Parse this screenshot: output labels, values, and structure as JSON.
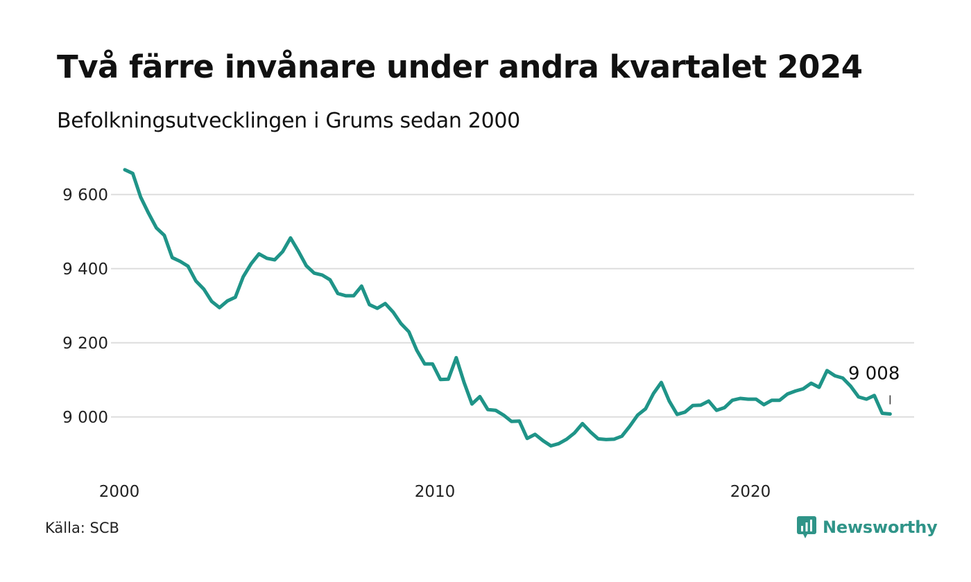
{
  "header": {
    "title": "Två färre invånare under andra kvartalet 2024",
    "subtitle": "Befolkningsutvecklingen i Grums sedan 2000"
  },
  "footer": {
    "source": "Källa: SCB",
    "brand": "Newsworthy",
    "brand_icon": "newsworthy-logo-icon"
  },
  "colors": {
    "line": "#1f9488",
    "grid": "#dddddd",
    "brand": "#2f9488"
  },
  "chart_data": {
    "type": "line",
    "title": "Två färre invånare under andra kvartalet 2024",
    "subtitle": "Befolkningsutvecklingen i Grums sedan 2000",
    "xlabel": "",
    "ylabel": "",
    "x_ticks": [
      2000,
      2010,
      2020
    ],
    "x_tick_labels": [
      "2000",
      "2010",
      "2020"
    ],
    "y_ticks": [
      9000,
      9200,
      9400,
      9600
    ],
    "y_tick_labels": [
      "9 000",
      "9 200",
      "9 400",
      "9 600"
    ],
    "xlim": [
      2000,
      2024.5
    ],
    "ylim": [
      8880,
      9680
    ],
    "grid": true,
    "series": [
      {
        "x": [
          2000.0,
          2000.25,
          2000.5,
          2000.75,
          2001.0,
          2001.25,
          2001.5,
          2001.75,
          2002.0,
          2002.25,
          2002.5,
          2002.75,
          2003.0,
          2003.25,
          2003.5,
          2003.75,
          2004.0,
          2004.25,
          2004.5,
          2004.75,
          2005.0,
          2005.25,
          2005.5,
          2005.75,
          2006.0,
          2006.25,
          2006.5,
          2006.75,
          2007.0,
          2007.25,
          2007.5,
          2007.75,
          2008.0,
          2008.25,
          2008.5,
          2008.75,
          2009.0,
          2009.25,
          2009.5,
          2009.75,
          2010.0,
          2010.25,
          2010.5,
          2010.75,
          2011.0,
          2011.25,
          2011.5,
          2011.75,
          2012.0,
          2012.25,
          2012.5,
          2012.75,
          2013.0,
          2013.25,
          2013.5,
          2013.75,
          2014.0,
          2014.25,
          2014.5,
          2014.75,
          2015.0,
          2015.25,
          2015.5,
          2015.75,
          2016.0,
          2016.25,
          2016.5,
          2016.75,
          2017.0,
          2017.25,
          2017.5,
          2017.75,
          2018.0,
          2018.25,
          2018.5,
          2018.75,
          2019.0,
          2019.25,
          2019.5,
          2019.75,
          2020.0,
          2020.25,
          2020.5,
          2020.75,
          2021.0,
          2021.25,
          2021.5,
          2021.75,
          2022.0,
          2022.25,
          2022.5,
          2022.75,
          2023.0,
          2023.25,
          2023.5,
          2023.75,
          2024.0,
          2024.25
        ],
        "values": [
          9667,
          9657,
          9593,
          9550,
          9510,
          9490,
          9430,
          9420,
          9407,
          9367,
          9345,
          9312,
          9295,
          9313,
          9323,
          9378,
          9413,
          9440,
          9428,
          9424,
          9446,
          9483,
          9447,
          9408,
          9388,
          9383,
          9370,
          9333,
          9327,
          9327,
          9353,
          9303,
          9293,
          9306,
          9283,
          9252,
          9230,
          9180,
          9143,
          9143,
          9101,
          9102,
          9160,
          9093,
          9035,
          9055,
          9020,
          9018,
          9005,
          8988,
          8989,
          8942,
          8953,
          8936,
          8922,
          8928,
          8940,
          8957,
          8982,
          8960,
          8941,
          8939,
          8940,
          8948,
          8975,
          9005,
          9022,
          9063,
          9093,
          9043,
          9007,
          9013,
          9031,
          9032,
          9043,
          9018,
          9025,
          9045,
          9050,
          9048,
          9048,
          9033,
          9045,
          9045,
          9062,
          9070,
          9076,
          9091,
          9080,
          9125,
          9111,
          9105,
          9083,
          9054,
          9048,
          9058,
          9010,
          9008
        ]
      }
    ],
    "annotations": [
      {
        "text": "9 008",
        "x": 2024.25,
        "y": 9008
      }
    ]
  }
}
